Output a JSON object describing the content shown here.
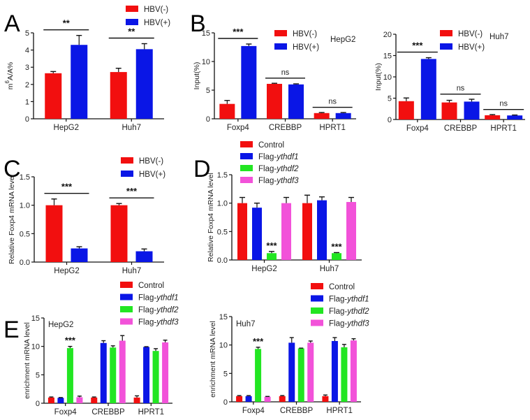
{
  "colors": {
    "HBV(-)": "#f20f0f",
    "HBV(+)": "#0a16e6",
    "Control": "#f20f0f",
    "Flag-ythdf1": "#0a16e6",
    "Flag-ythdf2": "#22e622",
    "Flag-ythdf3": "#f252d9"
  },
  "chart_data": [
    {
      "id": "A",
      "panel_letter": "A",
      "type": "bar",
      "title": "",
      "annotation": "",
      "ylabel": "m6A/A%",
      "ylabel_parts": {
        "base": "m",
        "sup": "6",
        "rest": "A/A%"
      },
      "xlabel": "",
      "ylim": [
        0,
        5
      ],
      "yticks": [
        "0",
        "1",
        "2",
        "3",
        "4",
        "5"
      ],
      "ytick_values": [
        0,
        1,
        2,
        3,
        4,
        5
      ],
      "categories": [
        "HepG2",
        "Huh7"
      ],
      "series": [
        {
          "name": "HBV(-)",
          "values": [
            2.65,
            2.72
          ],
          "errors": [
            0.1,
            0.22
          ]
        },
        {
          "name": "HBV(+)",
          "values": [
            4.3,
            4.05
          ],
          "errors": [
            0.55,
            0.32
          ]
        }
      ],
      "significance": [
        {
          "category": "HepG2",
          "label": "**",
          "type": "pair"
        },
        {
          "category": "Huh7",
          "label": "**",
          "type": "pair"
        }
      ],
      "legend": {
        "entries": [
          "HBV(-)",
          "HBV(+)"
        ],
        "placement": "top-right"
      }
    },
    {
      "id": "B1",
      "panel_letter": "B",
      "type": "bar",
      "title": "",
      "annotation": "HepG2",
      "ylabel": "Input(%)",
      "xlabel": "",
      "ylim": [
        0,
        15
      ],
      "yticks": [
        "0",
        "5",
        "10",
        "15"
      ],
      "ytick_values": [
        0,
        5,
        10,
        15
      ],
      "categories": [
        "Foxp4",
        "CREBBP",
        "HPRT1"
      ],
      "series": [
        {
          "name": "HBV(-)",
          "values": [
            2.6,
            6.1,
            1.0
          ],
          "errors": [
            0.6,
            0.1,
            0.1
          ]
        },
        {
          "name": "HBV(+)",
          "values": [
            12.7,
            6.0,
            1.0
          ],
          "errors": [
            0.35,
            0.1,
            0.1
          ]
        }
      ],
      "significance": [
        {
          "category": "Foxp4",
          "label": "***",
          "type": "pair"
        },
        {
          "category": "CREBBP",
          "label": "ns",
          "type": "pair"
        },
        {
          "category": "HPRT1",
          "label": "ns",
          "type": "pair"
        }
      ],
      "legend": {
        "entries": [
          "HBV(-)",
          "HBV(+)"
        ],
        "placement": "top-center"
      }
    },
    {
      "id": "B2",
      "panel_letter": "",
      "type": "bar",
      "title": "",
      "annotation": "Huh7",
      "ylabel": "Input(%)",
      "xlabel": "",
      "ylim": [
        0,
        20
      ],
      "yticks": [
        "0",
        "5",
        "10",
        "15",
        "20"
      ],
      "ytick_values": [
        0,
        5,
        10,
        15,
        20
      ],
      "categories": [
        "Foxp4",
        "CREBBP",
        "HPRT1"
      ],
      "series": [
        {
          "name": "HBV(-)",
          "values": [
            4.3,
            4.0,
            1.0
          ],
          "errors": [
            0.75,
            0.5,
            0.15
          ]
        },
        {
          "name": "HBV(+)",
          "values": [
            14.2,
            4.2,
            0.95
          ],
          "errors": [
            0.3,
            0.55,
            0.1
          ]
        }
      ],
      "significance": [
        {
          "category": "Foxp4",
          "label": "***",
          "type": "pair"
        },
        {
          "category": "CREBBP",
          "label": "ns",
          "type": "pair"
        },
        {
          "category": "HPRT1",
          "label": "ns",
          "type": "pair"
        }
      ],
      "legend": {
        "entries": [
          "HBV(-)",
          "HBV(+)"
        ],
        "placement": "top-center"
      }
    },
    {
      "id": "C",
      "panel_letter": "C",
      "type": "bar",
      "title": "",
      "annotation": "",
      "ylabel": "Relative Foxp4 mRNA level",
      "xlabel": "",
      "ylim": [
        0,
        1.5
      ],
      "yticks": [
        "0.0",
        "0.5",
        "1.0",
        "1.5"
      ],
      "ytick_values": [
        0,
        0.5,
        1.0,
        1.5
      ],
      "categories": [
        "HepG2",
        "Huh7"
      ],
      "series": [
        {
          "name": "HBV(-)",
          "values": [
            1.0,
            1.0
          ],
          "errors": [
            0.11,
            0.03
          ]
        },
        {
          "name": "HBV(+)",
          "values": [
            0.24,
            0.19
          ],
          "errors": [
            0.03,
            0.04
          ]
        }
      ],
      "significance": [
        {
          "category": "HepG2",
          "label": "***",
          "type": "pair"
        },
        {
          "category": "Huh7",
          "label": "***",
          "type": "pair"
        }
      ],
      "legend": {
        "entries": [
          "HBV(-)",
          "HBV(+)"
        ],
        "placement": "top-right"
      }
    },
    {
      "id": "D",
      "panel_letter": "D",
      "type": "bar",
      "title": "",
      "annotation": "",
      "ylabel": "Relative Foxp4 mRNA level",
      "xlabel": "",
      "ylim": [
        0,
        1.5
      ],
      "yticks": [
        "0.0",
        "0.5",
        "1.0",
        "1.5"
      ],
      "ytick_values": [
        0,
        0.5,
        1.0,
        1.5
      ],
      "categories": [
        "HepG2",
        "Huh7"
      ],
      "series": [
        {
          "name": "Control",
          "values": [
            1.0,
            1.0
          ],
          "errors": [
            0.1,
            0.14
          ]
        },
        {
          "name": "Flag-ythdf1",
          "values": [
            0.92,
            1.05
          ],
          "errors": [
            0.08,
            0.06
          ]
        },
        {
          "name": "Flag-ythdf2",
          "values": [
            0.12,
            0.12
          ],
          "errors": [
            0.03,
            0.01
          ]
        },
        {
          "name": "Flag-ythdf3",
          "values": [
            1.0,
            1.02
          ],
          "errors": [
            0.1,
            0.08
          ]
        }
      ],
      "significance": [
        {
          "category": "HepG2",
          "series": "Flag-ythdf2",
          "label": "***",
          "type": "bar"
        },
        {
          "category": "Huh7",
          "series": "Flag-ythdf2",
          "label": "***",
          "type": "bar"
        }
      ],
      "legend": {
        "entries": [
          "Control",
          "Flag-ythdf1",
          "Flag-ythdf2",
          "Flag-ythdf3"
        ],
        "placement": "top-left"
      }
    },
    {
      "id": "E1",
      "panel_letter": "E",
      "type": "bar",
      "title": "",
      "annotation": "HepG2",
      "ylabel": "enrichment mRNA level",
      "xlabel": "",
      "ylim": [
        0,
        15
      ],
      "yticks": [
        "0",
        "5",
        "10",
        "15"
      ],
      "ytick_values": [
        0,
        5,
        10,
        15
      ],
      "categories": [
        "Foxp4",
        "CREBBP",
        "HPRT1"
      ],
      "series": [
        {
          "name": "Control",
          "values": [
            1.0,
            1.0,
            1.0
          ],
          "errors": [
            0.1,
            0.1,
            0.3
          ]
        },
        {
          "name": "Flag-ythdf1",
          "values": [
            0.95,
            10.6,
            9.9
          ],
          "errors": [
            0.05,
            0.4,
            0.05
          ]
        },
        {
          "name": "Flag-ythdf2",
          "values": [
            9.7,
            9.8,
            9.2
          ],
          "errors": [
            0.3,
            0.3,
            0.4
          ]
        },
        {
          "name": "Flag-ythdf3",
          "values": [
            1.05,
            11.0,
            10.7
          ],
          "errors": [
            0.2,
            0.9,
            0.4
          ]
        }
      ],
      "significance": [
        {
          "category": "Foxp4",
          "series": "Flag-ythdf2",
          "label": "***",
          "type": "bar"
        }
      ],
      "legend": {
        "entries": [
          "Control",
          "Flag-ythdf1",
          "Flag-ythdf2",
          "Flag-ythdf3"
        ],
        "placement": "top-right"
      }
    },
    {
      "id": "E2",
      "panel_letter": "",
      "type": "bar",
      "title": "",
      "annotation": "Huh7",
      "ylabel": "enrichment mRNA level",
      "xlabel": "",
      "ylim": [
        0,
        15
      ],
      "yticks": [
        "0",
        "5",
        "10",
        "15"
      ],
      "ytick_values": [
        0,
        5,
        10,
        15
      ],
      "categories": [
        "Foxp4",
        "CREBBP",
        "HPRT1"
      ],
      "series": [
        {
          "name": "Control",
          "values": [
            1.0,
            1.0,
            1.0
          ],
          "errors": [
            0.1,
            0.1,
            0.2
          ]
        },
        {
          "name": "Flag-ythdf1",
          "values": [
            1.0,
            10.4,
            10.7
          ],
          "errors": [
            0.1,
            0.9,
            0.6
          ]
        },
        {
          "name": "Flag-ythdf2",
          "values": [
            9.3,
            9.4,
            9.6
          ],
          "errors": [
            0.3,
            0.05,
            0.5
          ]
        },
        {
          "name": "Flag-ythdf3",
          "values": [
            0.9,
            10.4,
            10.8
          ],
          "errors": [
            0.05,
            0.3,
            0.3
          ]
        }
      ],
      "significance": [
        {
          "category": "Foxp4",
          "series": "Flag-ythdf2",
          "label": "***",
          "type": "bar"
        }
      ],
      "legend": {
        "entries": [
          "Control",
          "Flag-ythdf1",
          "Flag-ythdf2",
          "Flag-ythdf3"
        ],
        "placement": "top-right"
      }
    }
  ]
}
